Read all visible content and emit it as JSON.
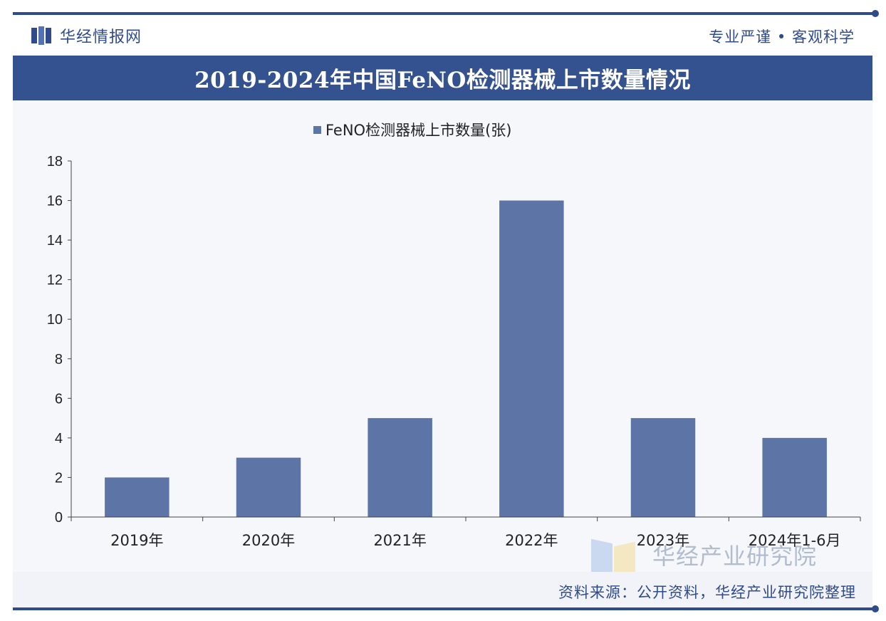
{
  "header": {
    "brand_name": "华经情报网",
    "motto": "专业严谨 • 客观科学"
  },
  "title": "2019-2024年中国FeNO检测器械上市数量情况",
  "watermark_text": "华经产业研究院",
  "source": "资料来源：公开资料，华经产业研究院整理",
  "colors": {
    "bar": "#5c74a6",
    "title_bar": "#34528f",
    "brand": "#2f4b8c"
  },
  "chart_data": {
    "type": "bar",
    "categories": [
      "2019年",
      "2020年",
      "2021年",
      "2022年",
      "2023年",
      "2024年1-6月"
    ],
    "series": [
      {
        "name": "FeNO检测器械上市数量(张)",
        "values": [
          2,
          3,
          5,
          16,
          5,
          4
        ]
      }
    ],
    "ylim": [
      0,
      18
    ],
    "yticks": [
      0,
      2,
      4,
      6,
      8,
      10,
      12,
      14,
      16,
      18
    ],
    "legend_position": "top",
    "grid": false
  }
}
